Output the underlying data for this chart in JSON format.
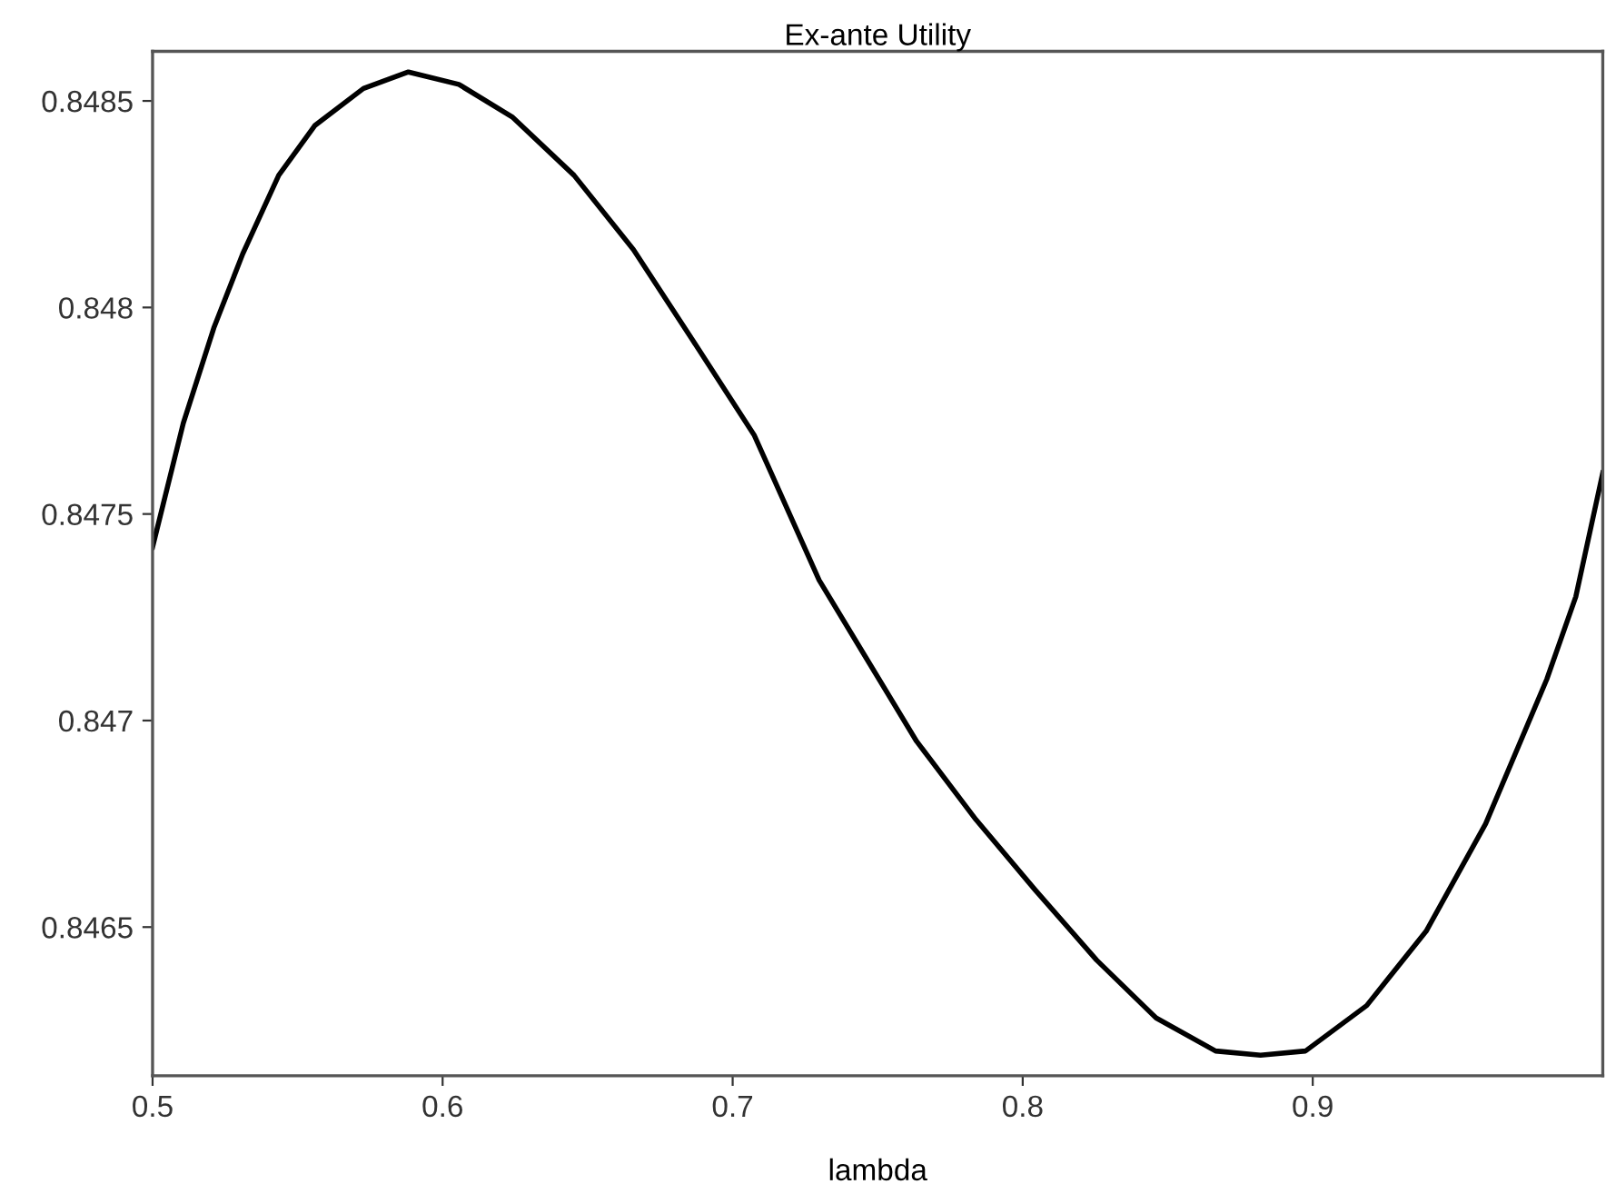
{
  "chart_data": {
    "type": "line",
    "title": "Ex-ante Utility",
    "xlabel": "lambda",
    "x": [
      0.5,
      0.5106,
      0.5211,
      0.5311,
      0.5435,
      0.5559,
      0.5727,
      0.5882,
      0.6056,
      0.6242,
      0.6453,
      0.6658,
      0.6863,
      0.7075,
      0.7298,
      0.7453,
      0.7634,
      0.7839,
      0.8043,
      0.8255,
      0.846,
      0.8665,
      0.882,
      0.8975,
      0.9186,
      0.9391,
      0.9596,
      0.9807,
      0.9907,
      1.0
    ],
    "series": [
      {
        "color": "#000000",
        "values": [
          0.84742,
          0.84772,
          0.84795,
          0.84813,
          0.84832,
          0.84844,
          0.84853,
          0.84857,
          0.84854,
          0.84846,
          0.84832,
          0.84814,
          0.84792,
          0.84769,
          0.84734,
          0.84716,
          0.84695,
          0.84676,
          0.84659,
          0.84642,
          0.84628,
          0.8462,
          0.84619,
          0.8462,
          0.84631,
          0.84649,
          0.84675,
          0.8471,
          0.8473,
          0.8476
        ]
      }
    ],
    "xlim": [
      0.5,
      1.0
    ],
    "ylim": [
      0.84614,
      0.84862
    ],
    "xticks": [
      0.5,
      0.6,
      0.7,
      0.8,
      0.9
    ],
    "yticks": [
      0.8465,
      0.847,
      0.8475,
      0.848,
      0.8485
    ],
    "grid": false,
    "legend": false,
    "marker": "none",
    "line_style": "solid"
  }
}
